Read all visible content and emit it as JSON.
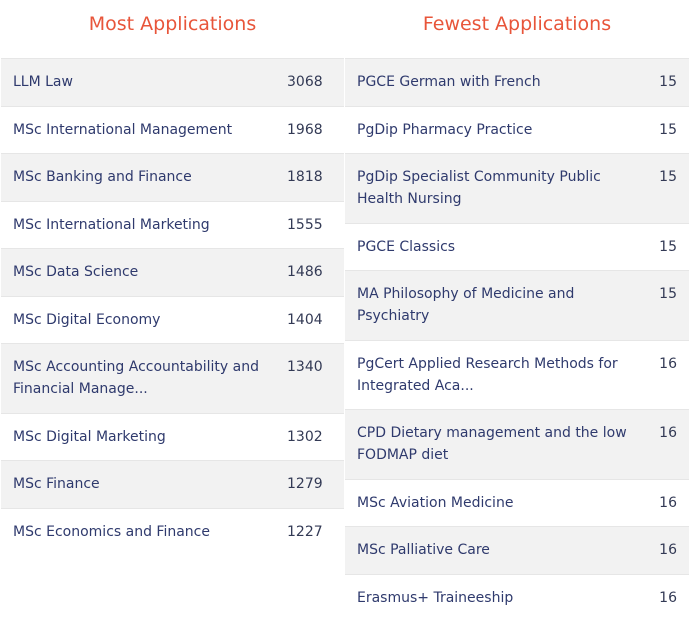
{
  "most": {
    "title": "Most Applications",
    "rows": [
      {
        "name": "LLM Law",
        "count": "3068"
      },
      {
        "name": "MSc International Management",
        "count": "1968"
      },
      {
        "name": "MSc Banking and Finance",
        "count": "1818"
      },
      {
        "name": "MSc International Marketing",
        "count": "1555"
      },
      {
        "name": "MSc Data Science",
        "count": "1486"
      },
      {
        "name": "MSc Digital Economy",
        "count": "1404"
      },
      {
        "name": "MSc Accounting Accountability and Financial Manage...",
        "count": "1340"
      },
      {
        "name": "MSc Digital Marketing",
        "count": "1302"
      },
      {
        "name": "MSc Finance",
        "count": "1279"
      },
      {
        "name": "MSc Economics and Finance",
        "count": "1227"
      }
    ]
  },
  "fewest": {
    "title": "Fewest Applications",
    "rows": [
      {
        "name": "PGCE German with French",
        "count": "15"
      },
      {
        "name": "PgDip Pharmacy Practice",
        "count": "15"
      },
      {
        "name": "PgDip Specialist Community Public Health Nursing",
        "count": "15"
      },
      {
        "name": "PGCE Classics",
        "count": "15"
      },
      {
        "name": "MA Philosophy of Medicine and Psychiatry",
        "count": "15"
      },
      {
        "name": "PgCert Applied Research Methods for Integrated Aca...",
        "count": "16"
      },
      {
        "name": "CPD Dietary management and the low FODMAP diet",
        "count": "16"
      },
      {
        "name": "MSc Aviation Medicine",
        "count": "16"
      },
      {
        "name": "MSc Palliative Care",
        "count": "16"
      },
      {
        "name": "Erasmus+ Traineeship",
        "count": "16"
      }
    ]
  }
}
